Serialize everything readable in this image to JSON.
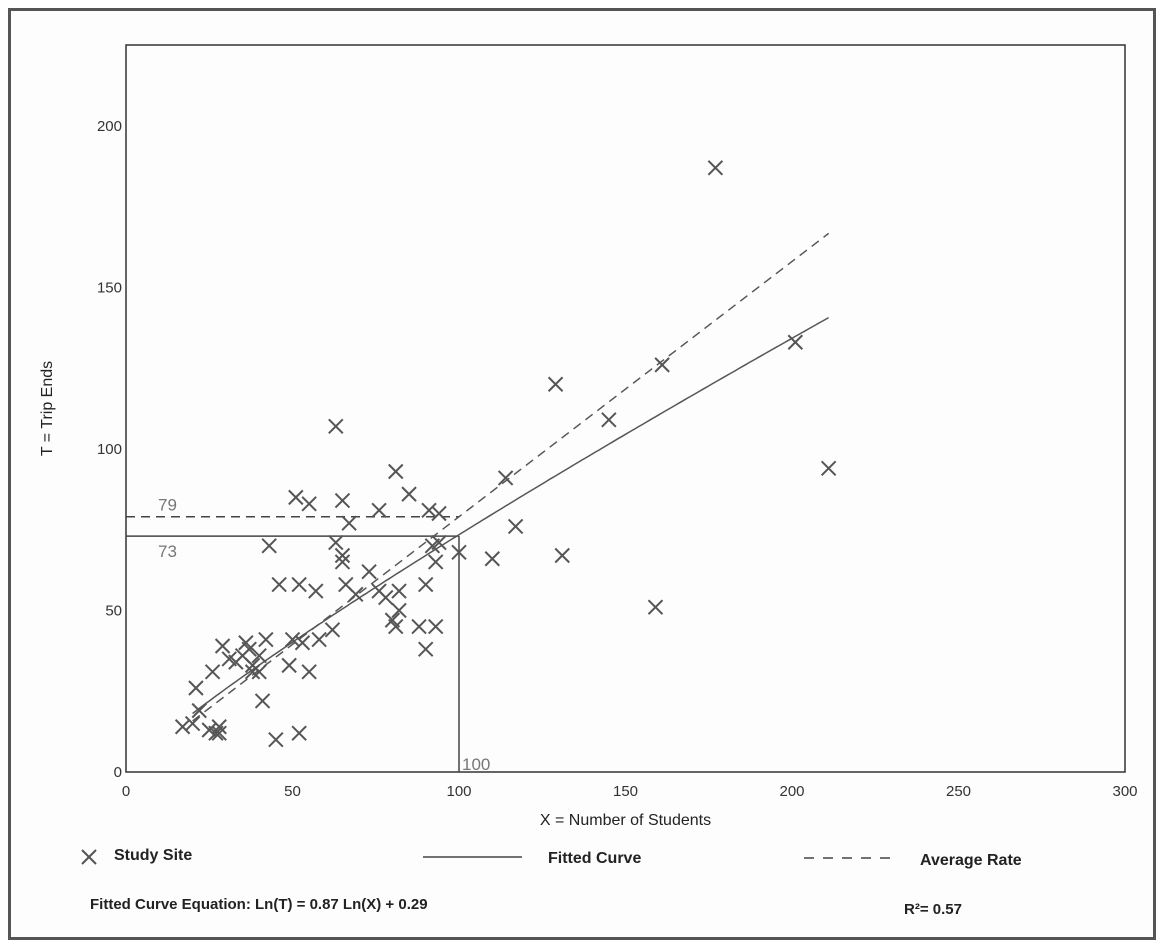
{
  "chart_data": {
    "type": "scatter",
    "xlabel": "X = Number of Students",
    "ylabel": "T = Trip Ends",
    "xlim": [
      0,
      300
    ],
    "ylim": [
      0,
      225
    ],
    "x_ticks": [
      0,
      50,
      100,
      150,
      200,
      250,
      300
    ],
    "y_ticks": [
      0,
      50,
      100,
      150,
      200
    ],
    "grid": false,
    "series": [
      {
        "name": "Study Site",
        "marker": "x",
        "color": "#555555",
        "points": [
          [
            17,
            14
          ],
          [
            20,
            15
          ],
          [
            21,
            26
          ],
          [
            22,
            19
          ],
          [
            25,
            13
          ],
          [
            26,
            31
          ],
          [
            27,
            12
          ],
          [
            28,
            14
          ],
          [
            28,
            12
          ],
          [
            29,
            39
          ],
          [
            31,
            35
          ],
          [
            33,
            34
          ],
          [
            35,
            36
          ],
          [
            36,
            40
          ],
          [
            37,
            38
          ],
          [
            38,
            33
          ],
          [
            38,
            31
          ],
          [
            40,
            31
          ],
          [
            40,
            36
          ],
          [
            41,
            22
          ],
          [
            42,
            41
          ],
          [
            43,
            70
          ],
          [
            45,
            10
          ],
          [
            46,
            58
          ],
          [
            49,
            33
          ],
          [
            50,
            41
          ],
          [
            51,
            85
          ],
          [
            52,
            58
          ],
          [
            52,
            12
          ],
          [
            53,
            40
          ],
          [
            55,
            83
          ],
          [
            55,
            31
          ],
          [
            57,
            56
          ],
          [
            58,
            41
          ],
          [
            62,
            44
          ],
          [
            63,
            71
          ],
          [
            63,
            107
          ],
          [
            65,
            84
          ],
          [
            65,
            67
          ],
          [
            65,
            65
          ],
          [
            66,
            58
          ],
          [
            67,
            77
          ],
          [
            69,
            55
          ],
          [
            73,
            62
          ],
          [
            76,
            56
          ],
          [
            76,
            81
          ],
          [
            78,
            54
          ],
          [
            80,
            47
          ],
          [
            81,
            45
          ],
          [
            81,
            93
          ],
          [
            82,
            50
          ],
          [
            82,
            56
          ],
          [
            85,
            86
          ],
          [
            88,
            45
          ],
          [
            90,
            58
          ],
          [
            90,
            38
          ],
          [
            91,
            81
          ],
          [
            92,
            70
          ],
          [
            93,
            45
          ],
          [
            93,
            65
          ],
          [
            94,
            71
          ],
          [
            94,
            80
          ],
          [
            100,
            68
          ],
          [
            110,
            66
          ],
          [
            114,
            91
          ],
          [
            117,
            76
          ],
          [
            129,
            120
          ],
          [
            131,
            67
          ],
          [
            145,
            109
          ],
          [
            159,
            51
          ],
          [
            161,
            126
          ],
          [
            177,
            187
          ],
          [
            201,
            133
          ],
          [
            211,
            94
          ]
        ]
      },
      {
        "name": "Fitted Curve",
        "style": "solid",
        "color": "#555555",
        "x_range": [
          20,
          211
        ]
      },
      {
        "name": "Average Rate",
        "style": "dashed",
        "color": "#555555",
        "x_range": [
          20,
          211
        ]
      }
    ],
    "reference_lines": {
      "x_value": 100,
      "x_label": "100",
      "y_fitted": 73,
      "y_fitted_label": "73",
      "y_average": 79,
      "y_average_label": "79"
    },
    "equation_text": "Fitted Curve Equation: Ln(T) = 0.87 Ln(X) + 0.29",
    "r_squared_text": "R²= 0.57"
  },
  "legend": {
    "study_site": "Study Site",
    "fitted_curve": "Fitted Curve",
    "average_rate": "Average Rate"
  }
}
